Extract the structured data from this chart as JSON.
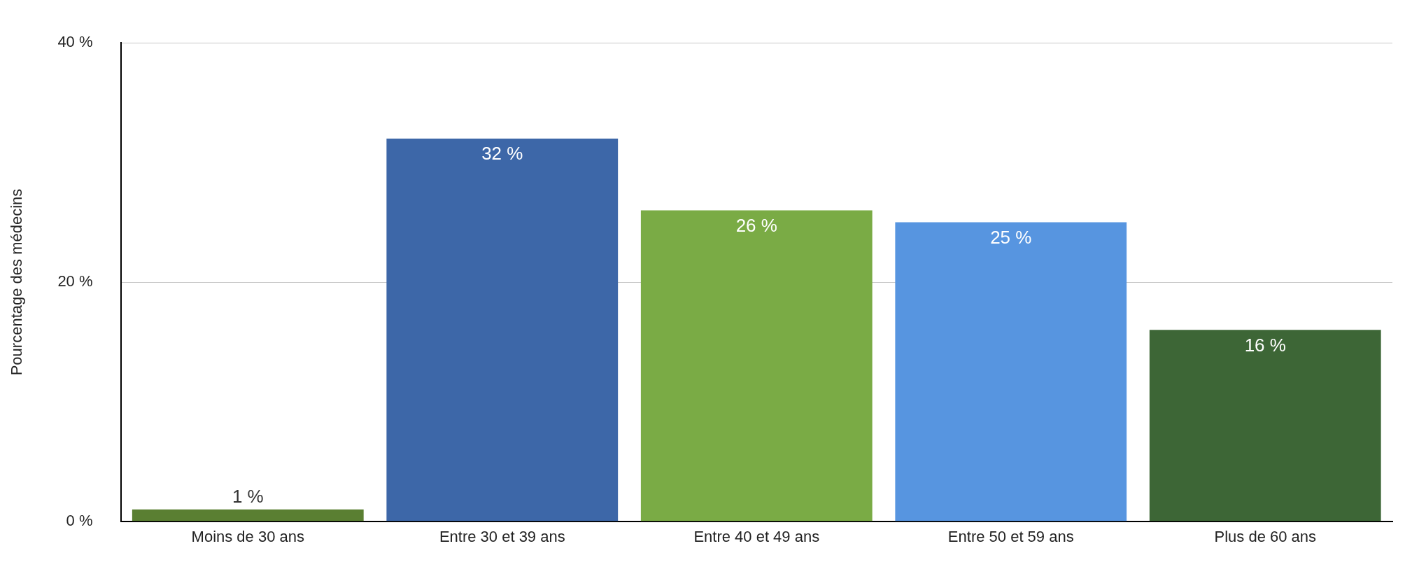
{
  "chart_data": {
    "type": "bar",
    "ylabel": "Pourcentage des médecins",
    "categories": [
      "Moins de 30 ans",
      "Entre 30 et 39 ans",
      "Entre 40 et 49 ans",
      "Entre 50 et 59 ans",
      "Plus de 60 ans"
    ],
    "values": [
      1,
      32,
      26,
      25,
      16
    ],
    "colors": [
      "#5a7f32",
      "#3d67a8",
      "#7aab45",
      "#5795e0",
      "#3d6636"
    ],
    "value_labels": [
      "1 %",
      "32 %",
      "26 %",
      "25 %",
      "16 %"
    ],
    "ylim": [
      0,
      40
    ],
    "yticks": [
      {
        "value": 0,
        "label": "0 %"
      },
      {
        "value": 20,
        "label": "20 %"
      },
      {
        "value": 40,
        "label": "40 %"
      }
    ],
    "grid": "y",
    "legend": false
  }
}
